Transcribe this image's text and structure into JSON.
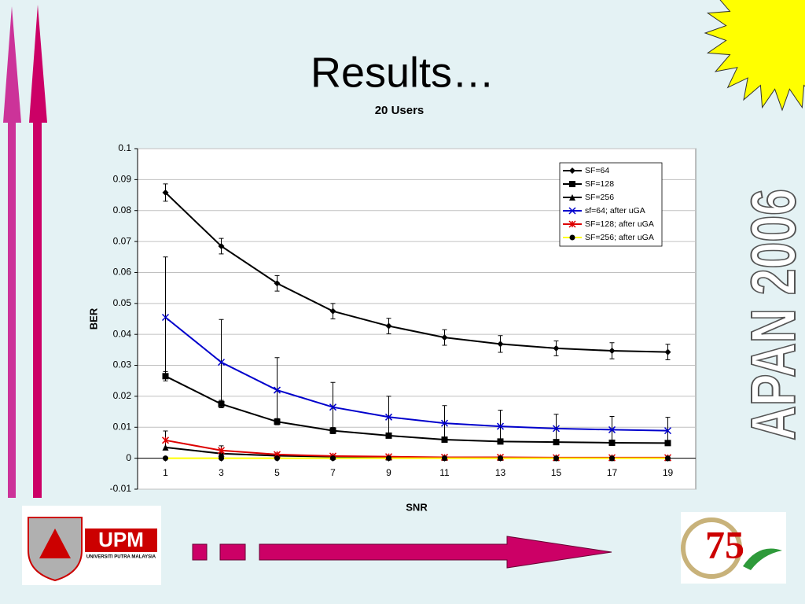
{
  "slide_title": "Results…",
  "side_text": "APAN 2006",
  "logo_left": {
    "acronym": "UPM",
    "name": "UNIVERSITI PUTRA MALAYSIA"
  },
  "logo_right": {
    "number": "75"
  },
  "chart_data": {
    "type": "line",
    "title": "20 Users",
    "x_label": "SNR",
    "y_label": "BER",
    "x": [
      1,
      3,
      5,
      7,
      9,
      11,
      13,
      15,
      17,
      19
    ],
    "xlim": [
      0,
      20
    ],
    "xticks": [
      1,
      3,
      5,
      7,
      9,
      11,
      13,
      15,
      17,
      19
    ],
    "ylim": [
      -0.01,
      0.1
    ],
    "yticks": [
      -0.01,
      0,
      0.01,
      0.02,
      0.03,
      0.04,
      0.05,
      0.06,
      0.07,
      0.08,
      0.09,
      0.1
    ],
    "grid": true,
    "legend": "upper right",
    "series": [
      {
        "name": "SF=64",
        "color": "#000000",
        "marker": "diamond",
        "marker_color": "#000000",
        "values": [
          0.0858,
          0.0685,
          0.0565,
          0.0475,
          0.0427,
          0.039,
          0.0369,
          0.0355,
          0.0347,
          0.0343
        ],
        "errors": [
          0.0028,
          0.0025,
          0.0025,
          0.0025,
          0.0025,
          0.0025,
          0.0027,
          0.0024,
          0.0026,
          0.0025
        ]
      },
      {
        "name": "SF=128",
        "color": "#000000",
        "marker": "square",
        "marker_color": "#000000",
        "values": [
          0.0265,
          0.0175,
          0.0118,
          0.0089,
          0.0073,
          0.006,
          0.0054,
          0.0052,
          0.005,
          0.0049
        ],
        "errors": [
          0.0015,
          0.0012,
          0.001,
          0.001,
          0.0005,
          0.0005,
          0.0005,
          0.0005,
          0.0005,
          0.0005
        ]
      },
      {
        "name": "SF=256",
        "color": "#000000",
        "marker": "triangle",
        "marker_color": "#000000",
        "values": [
          0.0035,
          0.0015,
          0.0008,
          0.0005,
          0.0003,
          0.0002,
          0.0002,
          0.0001,
          0.0001,
          0.0001
        ]
      },
      {
        "name": "sf=64; after uGA",
        "color": "#0000cc",
        "marker": "x",
        "marker_color": "#0000cc",
        "values": [
          0.0455,
          0.031,
          0.022,
          0.0165,
          0.0133,
          0.0113,
          0.0103,
          0.0096,
          0.0092,
          0.0089
        ],
        "errors": [
          0.0195,
          0.0138,
          0.0105,
          0.008,
          0.0067,
          0.0057,
          0.0052,
          0.0046,
          0.0043,
          0.0043
        ]
      },
      {
        "name": "SF=128; after uGA",
        "color": "#dd0000",
        "marker": "star",
        "marker_color": "#dd0000",
        "values": [
          0.0058,
          0.0025,
          0.0012,
          0.0007,
          0.0005,
          0.0003,
          0.0003,
          0.0002,
          0.0002,
          0.0002
        ],
        "errors": [
          0.003,
          0.0015,
          0.0005,
          0.0003,
          0.0002,
          0.0002,
          0.0002,
          0.0002,
          0.0002,
          0.0002
        ]
      },
      {
        "name": "SF=256; after uGA",
        "color": "#ffff00",
        "marker": "circle",
        "marker_color": "#000000",
        "values": [
          0,
          0,
          0,
          0,
          0,
          0,
          0,
          0,
          0,
          0
        ]
      }
    ]
  }
}
